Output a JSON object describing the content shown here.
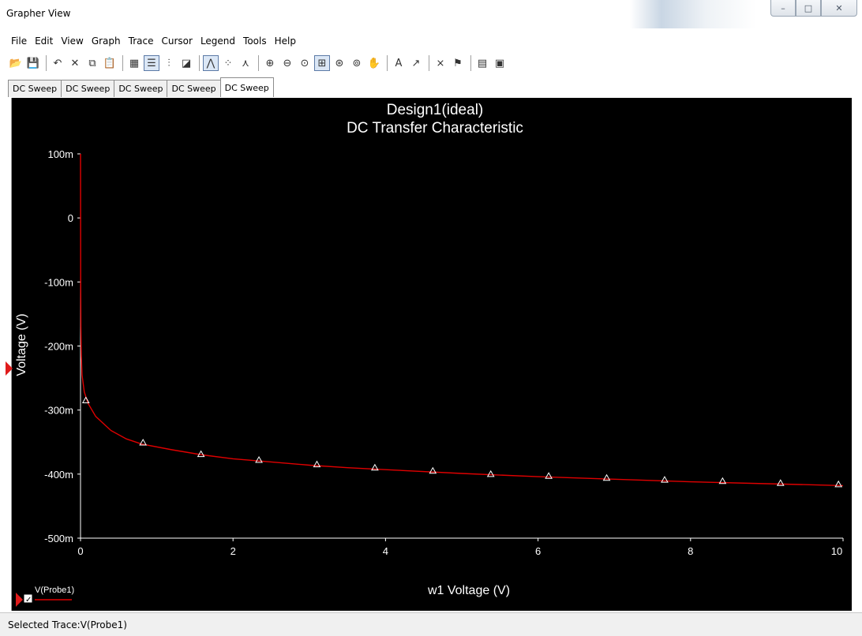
{
  "window": {
    "title": "Grapher View",
    "controls": {
      "minimize": "–",
      "maximize": "□",
      "close": "✕"
    }
  },
  "menu": [
    "File",
    "Edit",
    "View",
    "Graph",
    "Trace",
    "Cursor",
    "Legend",
    "Tools",
    "Help"
  ],
  "toolbar": [
    {
      "icon": "open-folder-icon",
      "glyph": "📂"
    },
    {
      "icon": "save-icon",
      "glyph": "💾"
    },
    {
      "sep": true
    },
    {
      "icon": "undo-icon",
      "glyph": "↶"
    },
    {
      "icon": "delete-icon",
      "glyph": "✕"
    },
    {
      "icon": "copy-icon",
      "glyph": "⧉"
    },
    {
      "icon": "paste-icon",
      "glyph": "📋"
    },
    {
      "sep": true
    },
    {
      "icon": "grid-icon",
      "glyph": "▦"
    },
    {
      "icon": "legend-icon",
      "glyph": "☰",
      "active": true
    },
    {
      "icon": "ruler-icon",
      "glyph": "⫶"
    },
    {
      "icon": "overlay-icon",
      "glyph": "◪"
    },
    {
      "sep": true
    },
    {
      "icon": "line-trace-icon",
      "glyph": "⋀",
      "active": true
    },
    {
      "icon": "point-trace-icon",
      "glyph": "⁘"
    },
    {
      "icon": "line-point-trace-icon",
      "glyph": "⋏"
    },
    {
      "sep": true
    },
    {
      "icon": "zoom-in-icon",
      "glyph": "⊕"
    },
    {
      "icon": "zoom-out-icon",
      "glyph": "⊖"
    },
    {
      "icon": "zoom-full-icon",
      "glyph": "⊙"
    },
    {
      "icon": "zoom-area-icon",
      "glyph": "⊞",
      "active": true
    },
    {
      "icon": "zoom-x-icon",
      "glyph": "⊛"
    },
    {
      "icon": "zoom-y-icon",
      "glyph": "⊚"
    },
    {
      "icon": "pan-hand-icon",
      "glyph": "✋"
    },
    {
      "sep": true
    },
    {
      "icon": "text-icon",
      "glyph": "A"
    },
    {
      "icon": "annotate-icon",
      "glyph": "↗"
    },
    {
      "sep": true
    },
    {
      "icon": "cursor-icon",
      "glyph": "⨯"
    },
    {
      "icon": "marker-icon",
      "glyph": "⚑"
    },
    {
      "sep": true
    },
    {
      "icon": "export-icon",
      "glyph": "▤"
    },
    {
      "icon": "properties-icon",
      "glyph": "▣"
    }
  ],
  "tabs": [
    {
      "label": "DC Sweep",
      "active": false
    },
    {
      "label": "DC Sweep",
      "active": false
    },
    {
      "label": "DC Sweep",
      "active": false
    },
    {
      "label": "DC Sweep",
      "active": false
    },
    {
      "label": "DC Sweep",
      "active": true
    }
  ],
  "chart_data": {
    "type": "line",
    "title": "Design1(ideal)",
    "subtitle": "DC Transfer Characteristic",
    "xlabel": "w1 Voltage (V)",
    "ylabel": "Voltage (V)",
    "xlim": [
      0,
      10
    ],
    "ylim": [
      -0.5,
      0.1
    ],
    "xticks": [
      0,
      2,
      4,
      6,
      8,
      10
    ],
    "xtick_labels": [
      "0",
      "2",
      "4",
      "6",
      "8",
      "10"
    ],
    "yticks": [
      0.1,
      0,
      -0.1,
      -0.2,
      -0.3,
      -0.4,
      -0.5
    ],
    "ytick_labels": [
      "100m",
      "0",
      "-100m",
      "-200m",
      "-300m",
      "-400m",
      "-500m"
    ],
    "grid": false,
    "series": [
      {
        "name": "V(Probe1)",
        "color": "#e00000",
        "marker_color": "#ffffff",
        "x": [
          0,
          0.002,
          0.005,
          0.01,
          0.02,
          0.05,
          0.1,
          0.2,
          0.4,
          0.6,
          0.8,
          1.2,
          1.6,
          2.0,
          2.5,
          3.0,
          3.5,
          4.0,
          5.0,
          6.0,
          7.0,
          8.0,
          9.0,
          10.0
        ],
        "y": [
          0.1,
          -0.09,
          -0.17,
          -0.215,
          -0.245,
          -0.272,
          -0.29,
          -0.31,
          -0.332,
          -0.345,
          -0.353,
          -0.362,
          -0.37,
          -0.376,
          -0.381,
          -0.386,
          -0.39,
          -0.393,
          -0.399,
          -0.404,
          -0.408,
          -0.412,
          -0.415,
          -0.418
        ]
      }
    ],
    "markers": {
      "x": [
        0.07,
        0.82,
        1.58,
        2.34,
        3.1,
        3.86,
        4.62,
        5.38,
        6.14,
        6.9,
        7.66,
        8.42,
        9.18,
        9.94
      ],
      "y": [
        -0.285,
        -0.351,
        -0.369,
        -0.378,
        -0.385,
        -0.39,
        -0.395,
        -0.4,
        -0.403,
        -0.406,
        -0.409,
        -0.411,
        -0.414,
        -0.416
      ]
    },
    "legend": {
      "placement": "bottom-left",
      "label": "V(Probe1)",
      "checked": true
    }
  },
  "status": {
    "text": "Selected Trace:V(Probe1)"
  }
}
